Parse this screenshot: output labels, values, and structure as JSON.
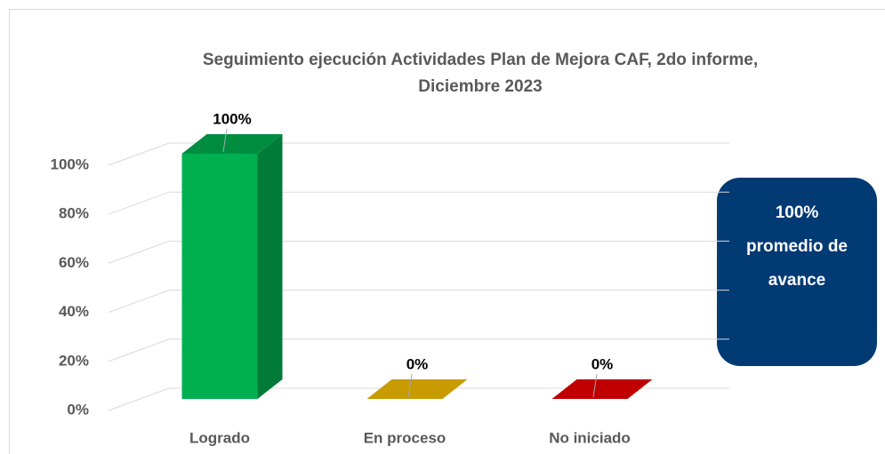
{
  "chart_data": {
    "type": "bar3d",
    "title": [
      "Seguimiento ejecución Actividades Plan de Mejora CAF, 2do informe,",
      "Diciembre 2023"
    ],
    "categories": [
      "Logrado",
      "En proceso",
      "No iniciado"
    ],
    "values": [
      100,
      0,
      0
    ],
    "value_labels": [
      "100%",
      "0%",
      "0%"
    ],
    "colors": [
      "#00b050",
      "#c89b00",
      "#c00000"
    ],
    "ylim": [
      0,
      100
    ],
    "yticks": [
      {
        "value": 0,
        "label": "0%"
      },
      {
        "value": 20,
        "label": "20%"
      },
      {
        "value": 40,
        "label": "40%"
      },
      {
        "value": 60,
        "label": "60%"
      },
      {
        "value": 80,
        "label": "80%"
      },
      {
        "value": 100,
        "label": "100%"
      }
    ],
    "grid": true,
    "annotation": [
      "100%",
      "promedio de",
      "avance"
    ]
  }
}
